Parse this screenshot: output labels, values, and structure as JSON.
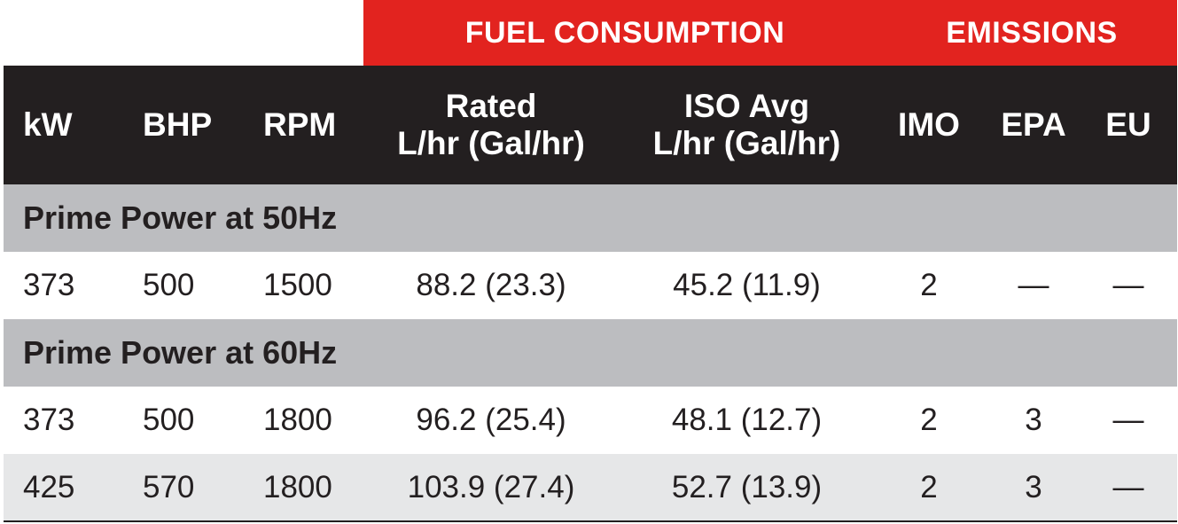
{
  "group_headers": {
    "fuel": "FUEL CONSUMPTION",
    "emissions": "EMISSIONS"
  },
  "columns": {
    "kw": "kW",
    "bhp": "BHP",
    "rpm": "RPM",
    "rated_line1": "Rated",
    "rated_line2": "L/hr (Gal/hr)",
    "iso_line1": "ISO Avg",
    "iso_line2": "L/hr (Gal/hr)",
    "imo": "IMO",
    "epa": "EPA",
    "eu": "EU"
  },
  "sections": [
    {
      "title": "Prime Power at 50Hz",
      "rows": [
        {
          "kw": "373",
          "bhp": "500",
          "rpm": "1500",
          "rated": "88.2 (23.3)",
          "iso": "45.2 (11.9)",
          "imo": "2",
          "epa": "—",
          "eu": "—"
        }
      ]
    },
    {
      "title": "Prime Power at 60Hz",
      "rows": [
        {
          "kw": "373",
          "bhp": "500",
          "rpm": "1800",
          "rated": "96.2 (25.4)",
          "iso": "48.1 (12.7)",
          "imo": "2",
          "epa": "3",
          "eu": "—"
        },
        {
          "kw": "425",
          "bhp": "570",
          "rpm": "1800",
          "rated": "103.9 (27.4)",
          "iso": "52.7 (13.9)",
          "imo": "2",
          "epa": "3",
          "eu": "—"
        }
      ]
    }
  ],
  "colors": {
    "accent_red": "#e2231f",
    "header_dark": "#231f20",
    "section_gray": "#bcbdc0",
    "row_shade": "#e6e7e8"
  }
}
